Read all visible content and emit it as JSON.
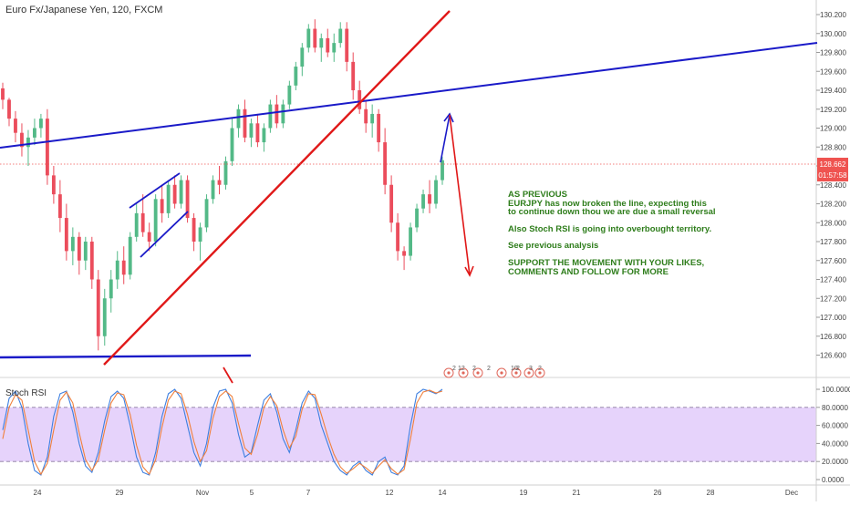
{
  "symbol": {
    "title": "Euro Fx/Japanese Yen, 120, FXCM"
  },
  "annotation": {
    "lines": [
      "AS PREVIOUS",
      "EURJPY has now broken the line, expecting this",
      "to continue down thou we are due a small reversal",
      "",
      "Also Stoch RSI is going into overbought territory.",
      "",
      "See previous analysis",
      "",
      "SUPPORT THE MOVEMENT WITH YOUR LIKES,",
      "COMMENTS AND FOLLOW FOR MORE"
    ]
  },
  "indicator": {
    "name": "Stoch RSI"
  },
  "price_tag": {
    "value": "128.662",
    "countdown": "01:57:58"
  },
  "event_badges": [
    "2",
    "12",
    "2",
    "2",
    "10",
    "2",
    "3",
    "2"
  ],
  "colors": {
    "up": "#53b987",
    "down": "#eb4d5c",
    "blue_line": "#1a1ac8",
    "red_line": "#e01818",
    "annotation": "#2e7d1b",
    "stoch_k": "#3d7fe0",
    "stoch_d": "#f0803c",
    "stoch_band": "#e6d3fb",
    "price_tag": "#ef5350"
  },
  "chart_data": [
    {
      "type": "candlestick",
      "title": "Euro Fx/Japanese Yen, 120, FXCM",
      "ylim": [
        126.5,
        130.25
      ],
      "y_ticks": [
        "130.200",
        "130.000",
        "129.800",
        "129.600",
        "129.400",
        "129.200",
        "129.000",
        "128.800",
        "128.600",
        "128.400",
        "128.200",
        "128.000",
        "127.800",
        "127.600",
        "127.400",
        "127.200",
        "127.000",
        "126.800",
        "126.600"
      ],
      "x_ticks": [
        "24",
        "29",
        "Nov",
        "5",
        "7",
        "12",
        "14",
        "19",
        "21",
        "26",
        "28",
        "Dec"
      ],
      "last_price": 128.662,
      "candles": [
        [
          129.42,
          129.48,
          129.2,
          129.3
        ],
        [
          129.3,
          129.32,
          129.02,
          129.1
        ],
        [
          129.1,
          129.18,
          128.85,
          128.95
        ],
        [
          128.95,
          129.05,
          128.7,
          128.8
        ],
        [
          128.8,
          128.98,
          128.6,
          128.9
        ],
        [
          128.9,
          129.1,
          128.82,
          129.0
        ],
        [
          129.0,
          129.15,
          128.9,
          129.1
        ],
        [
          129.1,
          129.2,
          128.4,
          128.5
        ],
        [
          128.5,
          128.6,
          128.2,
          128.3
        ],
        [
          128.3,
          128.45,
          127.9,
          128.05
        ],
        [
          128.05,
          128.2,
          127.6,
          127.7
        ],
        [
          127.7,
          127.95,
          127.55,
          127.85
        ],
        [
          127.85,
          127.9,
          127.45,
          127.6
        ],
        [
          127.6,
          127.85,
          127.5,
          127.8
        ],
        [
          127.8,
          127.85,
          127.3,
          127.4
        ],
        [
          127.4,
          127.5,
          126.65,
          126.8
        ],
        [
          126.8,
          127.3,
          126.7,
          127.2
        ],
        [
          127.2,
          127.5,
          127.05,
          127.4
        ],
        [
          127.4,
          127.7,
          127.3,
          127.6
        ],
        [
          127.6,
          127.75,
          127.35,
          127.45
        ],
        [
          127.45,
          127.9,
          127.4,
          127.85
        ],
        [
          127.85,
          128.2,
          127.8,
          128.1
        ],
        [
          128.1,
          128.3,
          127.85,
          127.9
        ],
        [
          127.9,
          128.0,
          127.7,
          127.8
        ],
        [
          127.8,
          128.3,
          127.75,
          128.25
        ],
        [
          128.25,
          128.4,
          128.0,
          128.1
        ],
        [
          128.1,
          128.45,
          128.05,
          128.4
        ],
        [
          128.4,
          128.5,
          128.15,
          128.2
        ],
        [
          128.2,
          128.5,
          128.15,
          128.45
        ],
        [
          128.45,
          128.5,
          128.0,
          128.05
        ],
        [
          128.05,
          128.1,
          127.7,
          127.8
        ],
        [
          127.8,
          128.0,
          127.6,
          127.95
        ],
        [
          127.95,
          128.3,
          127.9,
          128.25
        ],
        [
          128.25,
          128.5,
          128.2,
          128.45
        ],
        [
          128.45,
          128.6,
          128.3,
          128.4
        ],
        [
          128.4,
          128.7,
          128.35,
          128.65
        ],
        [
          128.65,
          129.1,
          128.6,
          129.0
        ],
        [
          129.0,
          129.25,
          128.9,
          129.2
        ],
        [
          129.2,
          129.3,
          128.85,
          128.9
        ],
        [
          128.9,
          129.1,
          128.8,
          129.05
        ],
        [
          129.05,
          129.15,
          128.8,
          128.85
        ],
        [
          128.85,
          129.05,
          128.75,
          129.0
        ],
        [
          129.0,
          129.3,
          128.95,
          129.25
        ],
        [
          129.25,
          129.35,
          129.0,
          129.05
        ],
        [
          129.05,
          129.3,
          129.0,
          129.25
        ],
        [
          129.25,
          129.5,
          129.2,
          129.45
        ],
        [
          129.45,
          129.7,
          129.4,
          129.65
        ],
        [
          129.65,
          129.9,
          129.55,
          129.85
        ],
        [
          129.85,
          130.1,
          129.8,
          130.05
        ],
        [
          130.05,
          130.15,
          129.8,
          129.85
        ],
        [
          129.85,
          130.0,
          129.7,
          129.95
        ],
        [
          129.95,
          130.05,
          129.75,
          129.8
        ],
        [
          129.8,
          130.0,
          129.7,
          129.9
        ],
        [
          129.9,
          130.12,
          129.85,
          130.05
        ],
        [
          130.05,
          130.12,
          129.6,
          129.7
        ],
        [
          129.7,
          129.8,
          129.3,
          129.4
        ],
        [
          129.4,
          129.5,
          129.15,
          129.2
        ],
        [
          129.2,
          129.3,
          128.95,
          129.05
        ],
        [
          129.05,
          129.25,
          128.9,
          129.15
        ],
        [
          129.15,
          129.2,
          128.75,
          128.85
        ],
        [
          128.85,
          129.0,
          128.3,
          128.4
        ],
        [
          128.4,
          128.5,
          127.9,
          128.0
        ],
        [
          128.0,
          128.1,
          127.6,
          127.7
        ],
        [
          127.7,
          127.75,
          127.5,
          127.65
        ],
        [
          127.65,
          128.0,
          127.6,
          127.95
        ],
        [
          127.95,
          128.2,
          127.9,
          128.15
        ],
        [
          128.15,
          128.35,
          128.1,
          128.3
        ],
        [
          128.3,
          128.45,
          128.1,
          128.2
        ],
        [
          128.2,
          128.5,
          128.15,
          128.45
        ],
        [
          128.45,
          128.7,
          128.4,
          128.66
        ]
      ]
    },
    {
      "type": "line",
      "title": "Stoch RSI",
      "ylim": [
        0,
        100
      ],
      "y_ticks": [
        "100.0000",
        "80.0000",
        "60.0000",
        "40.0000",
        "20.0000",
        "0.0000"
      ],
      "band": [
        20,
        80
      ],
      "series": [
        {
          "name": "K",
          "values": [
            55,
            90,
            98,
            80,
            40,
            10,
            5,
            25,
            70,
            95,
            98,
            75,
            40,
            15,
            8,
            30,
            65,
            92,
            98,
            90,
            60,
            25,
            8,
            5,
            30,
            70,
            95,
            100,
            90,
            60,
            30,
            15,
            40,
            80,
            98,
            100,
            85,
            50,
            25,
            30,
            60,
            88,
            95,
            75,
            45,
            30,
            55,
            85,
            98,
            90,
            60,
            40,
            20,
            10,
            5,
            15,
            20,
            10,
            5,
            20,
            25,
            8,
            5,
            15,
            60,
            95,
            100,
            98,
            95,
            100
          ]
        },
        {
          "name": "D",
          "values": [
            45,
            80,
            94,
            88,
            55,
            20,
            6,
            18,
            55,
            88,
            97,
            85,
            52,
            22,
            10,
            22,
            55,
            85,
            96,
            94,
            72,
            38,
            14,
            6,
            22,
            58,
            88,
            98,
            95,
            72,
            42,
            20,
            32,
            68,
            92,
            98,
            92,
            62,
            35,
            28,
            50,
            80,
            92,
            82,
            55,
            35,
            48,
            78,
            95,
            94,
            72,
            48,
            28,
            14,
            7,
            12,
            18,
            13,
            7,
            15,
            22,
            12,
            6,
            11,
            45,
            85,
            97,
            99,
            96,
            98
          ]
        }
      ]
    }
  ]
}
